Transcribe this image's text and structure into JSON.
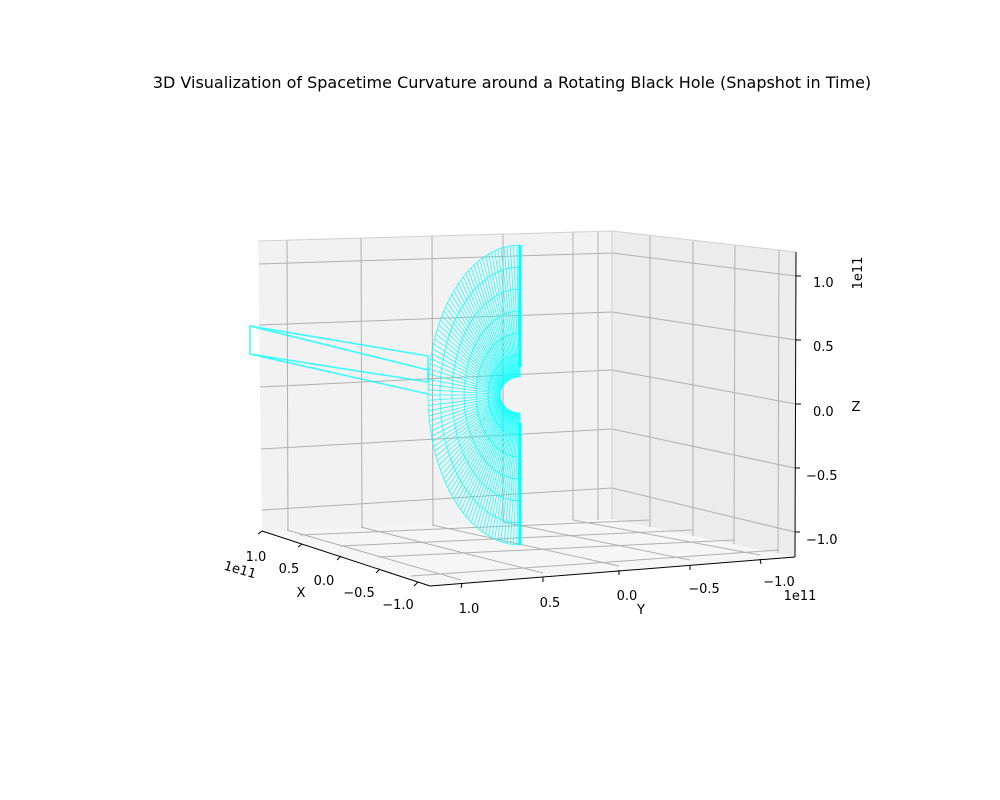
{
  "chart_data": {
    "type": "surface",
    "title": "3D Visualization of Spacetime Curvature around a Rotating Black Hole (Snapshot in Time)",
    "xlabel": "X",
    "ylabel": "Y",
    "zlabel": "Z",
    "x_ticks": [
      "1.0",
      "0.5",
      "0.0",
      "−0.5",
      "−1.0"
    ],
    "y_ticks": [
      "1.0",
      "0.5",
      "0.0",
      "−0.5",
      "−1.0"
    ],
    "z_ticks": [
      "1.0",
      "0.5",
      "0.0",
      "−0.5",
      "−1.0"
    ],
    "x_offset": "1e11",
    "y_offset": "1e11",
    "z_offset": "1e11",
    "xlim": [
      -110000000000.0,
      110000000000.0
    ],
    "ylim": [
      -110000000000.0,
      110000000000.0
    ],
    "zlim": [
      -110000000000.0,
      110000000000.0
    ],
    "grid": true,
    "surface_color": "#00ffff",
    "surface": {
      "shape": "half-annulus",
      "inner_radius_fraction": 0.12,
      "outer_radius": 115000000000.0,
      "radial_lines": 90,
      "concentric_rings": 6
    }
  }
}
